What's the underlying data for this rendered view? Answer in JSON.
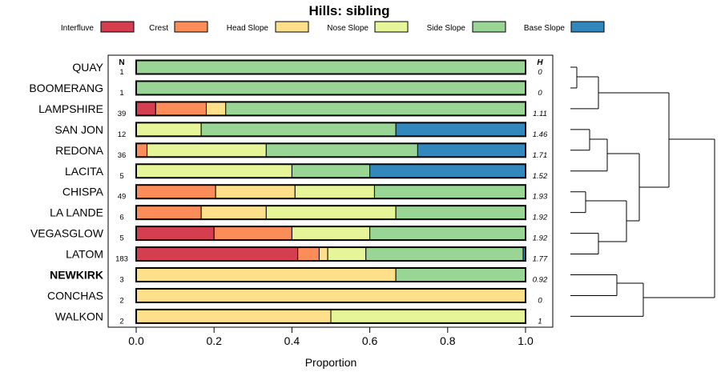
{
  "chart_data": {
    "type": "bar",
    "stacked": true,
    "orientation": "horizontal",
    "title": "Hills: sibling",
    "xlabel": "Proportion",
    "xlim": [
      0,
      1
    ],
    "xticks": [
      "0.0",
      "0.2",
      "0.4",
      "0.6",
      "0.8",
      "1.0"
    ],
    "n_header": "N",
    "h_header": "H",
    "legend": [
      {
        "name": "Interfluve",
        "color": "#d53e4f"
      },
      {
        "name": "Crest",
        "color": "#fc8d59"
      },
      {
        "name": "Head Slope",
        "color": "#fee08b"
      },
      {
        "name": "Nose Slope",
        "color": "#e6f598"
      },
      {
        "name": "Side Slope",
        "color": "#99d594"
      },
      {
        "name": "Base Slope",
        "color": "#3288bd"
      }
    ],
    "rows": [
      {
        "label": "QUAY",
        "bold": false,
        "n": "1",
        "h": "0",
        "values": [
          0,
          0,
          0,
          0,
          1.0,
          0
        ]
      },
      {
        "label": "BOOMERANG",
        "bold": false,
        "n": "1",
        "h": "0",
        "values": [
          0,
          0,
          0,
          0,
          1.0,
          0
        ]
      },
      {
        "label": "LAMPSHIRE",
        "bold": false,
        "n": "39",
        "h": "1.11",
        "values": [
          0.05,
          0.13,
          0.05,
          0,
          0.77,
          0
        ]
      },
      {
        "label": "SAN JON",
        "bold": false,
        "n": "12",
        "h": "1.46",
        "values": [
          0,
          0,
          0,
          0.167,
          0.5,
          0.333
        ]
      },
      {
        "label": "REDONA",
        "bold": false,
        "n": "36",
        "h": "1.71",
        "values": [
          0,
          0.028,
          0,
          0.306,
          0.389,
          0.277
        ]
      },
      {
        "label": "LACITA",
        "bold": false,
        "n": "5",
        "h": "1.52",
        "values": [
          0,
          0,
          0,
          0.4,
          0.2,
          0.4
        ]
      },
      {
        "label": "CHISPA",
        "bold": false,
        "n": "49",
        "h": "1.93",
        "values": [
          0,
          0.204,
          0.204,
          0.204,
          0.388,
          0
        ]
      },
      {
        "label": "LA LANDE",
        "bold": false,
        "n": "6",
        "h": "1.92",
        "values": [
          0,
          0.167,
          0.167,
          0.333,
          0.333,
          0
        ]
      },
      {
        "label": "VEGASGLOW",
        "bold": false,
        "n": "5",
        "h": "1.92",
        "values": [
          0.2,
          0.2,
          0,
          0.2,
          0.4,
          0
        ]
      },
      {
        "label": "LATOM",
        "bold": false,
        "n": "183",
        "h": "1.77",
        "values": [
          0.415,
          0.055,
          0.022,
          0.098,
          0.404,
          0.006
        ]
      },
      {
        "label": "NEWKIRK",
        "bold": true,
        "n": "3",
        "h": "0.92",
        "values": [
          0,
          0,
          0.667,
          0,
          0.333,
          0
        ]
      },
      {
        "label": "CONCHAS",
        "bold": false,
        "n": "2",
        "h": "0",
        "values": [
          0,
          0,
          1.0,
          0,
          0,
          0
        ]
      },
      {
        "label": "WALKON",
        "bold": false,
        "n": "2",
        "h": "1",
        "values": [
          0,
          0,
          0.5,
          0.5,
          0,
          0
        ]
      }
    ]
  }
}
